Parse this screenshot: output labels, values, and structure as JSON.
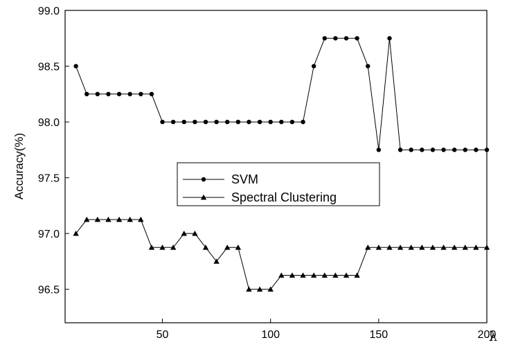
{
  "chart_data": {
    "type": "line",
    "xlabel": "λ",
    "ylabel": "Accuracy(%)",
    "xlim": [
      5,
      200
    ],
    "ylim": [
      96.2,
      99.0
    ],
    "x_ticks": [
      "50",
      "100",
      "150",
      "200"
    ],
    "y_ticks": [
      "96.5",
      "97.0",
      "97.5",
      "98.0",
      "98.5",
      "99.0"
    ],
    "legend_position": "center",
    "grid": false,
    "series": [
      {
        "name": "SVM",
        "marker": "circle",
        "x": [
          10,
          15,
          20,
          25,
          30,
          35,
          40,
          45,
          50,
          55,
          60,
          65,
          70,
          75,
          80,
          85,
          90,
          95,
          100,
          105,
          110,
          115,
          120,
          125,
          130,
          135,
          140,
          145,
          150,
          155,
          160,
          165,
          170,
          175,
          180,
          185,
          190,
          195,
          200
        ],
        "values": [
          98.5,
          98.25,
          98.25,
          98.25,
          98.25,
          98.25,
          98.25,
          98.25,
          98.0,
          98.0,
          98.0,
          98.0,
          98.0,
          98.0,
          98.0,
          98.0,
          98.0,
          98.0,
          98.0,
          98.0,
          98.0,
          98.0,
          98.5,
          98.75,
          98.75,
          98.75,
          98.75,
          98.5,
          97.75,
          98.75,
          97.75,
          97.75,
          97.75,
          97.75,
          97.75,
          97.75,
          97.75,
          97.75,
          97.75
        ]
      },
      {
        "name": "Spectral Clustering",
        "marker": "triangle",
        "x": [
          10,
          15,
          20,
          25,
          30,
          35,
          40,
          45,
          50,
          55,
          60,
          65,
          70,
          75,
          80,
          85,
          90,
          95,
          100,
          105,
          110,
          115,
          120,
          125,
          130,
          135,
          140,
          145,
          150,
          155,
          160,
          165,
          170,
          175,
          180,
          185,
          190,
          195,
          200
        ],
        "values": [
          97.0,
          97.125,
          97.125,
          97.125,
          97.125,
          97.125,
          97.125,
          96.875,
          96.875,
          96.875,
          97.0,
          97.0,
          96.875,
          96.75,
          96.875,
          96.875,
          96.5,
          96.5,
          96.5,
          96.625,
          96.625,
          96.625,
          96.625,
          96.625,
          96.625,
          96.625,
          96.625,
          96.875,
          96.875,
          96.875,
          96.875,
          96.875,
          96.875,
          96.875,
          96.875,
          96.875,
          96.875,
          96.875,
          96.875
        ]
      }
    ]
  }
}
